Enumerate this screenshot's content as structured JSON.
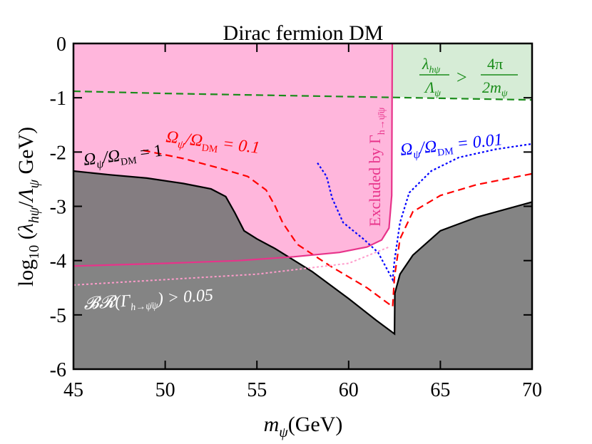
{
  "chart_data": {
    "type": "line",
    "title": "Dirac fermion DM",
    "xlabel": "m_ψ(GeV)",
    "ylabel": "log₁₀(λ_hψ/Λ_ψ GeV)",
    "xlim": [
      45,
      70
    ],
    "ylim": [
      -6,
      0
    ],
    "xticks": [
      45,
      50,
      55,
      60,
      65,
      70
    ],
    "yticks": [
      0,
      -1,
      -2,
      -3,
      -4,
      -5,
      -6
    ],
    "colors": {
      "relic_region": "#777777",
      "relic_line": "#000000",
      "br_region": "#ff99cc",
      "br_line": "#e8338a",
      "perturbative_region": "#9fd39f",
      "perturbative_line": "#1a8c1a",
      "omega01_line": "#ff0000",
      "omega001_line": "#0000ff"
    },
    "series": [
      {
        "name": "Ω_ψ/Ω_DM = 1",
        "color": "#000000",
        "style": "solid",
        "points": [
          [
            45,
            -2.35
          ],
          [
            47,
            -2.42
          ],
          [
            49,
            -2.48
          ],
          [
            51,
            -2.58
          ],
          [
            52.5,
            -2.68
          ],
          [
            53.3,
            -2.82
          ],
          [
            53.8,
            -3.12
          ],
          [
            54.3,
            -3.45
          ],
          [
            55,
            -3.6
          ],
          [
            56,
            -3.78
          ],
          [
            58,
            -4.2
          ],
          [
            60,
            -4.7
          ],
          [
            61.5,
            -5.1
          ],
          [
            62.5,
            -5.35
          ],
          [
            62.52,
            -4.6
          ],
          [
            62.8,
            -4.25
          ],
          [
            63.5,
            -3.9
          ],
          [
            65,
            -3.45
          ],
          [
            67,
            -3.2
          ],
          [
            70,
            -2.92
          ]
        ]
      },
      {
        "name": "Ω_ψ/Ω_DM = 0.1",
        "color": "#ff0000",
        "style": "dashed",
        "points": [
          [
            48.8,
            -1.97
          ],
          [
            51,
            -2.12
          ],
          [
            53,
            -2.3
          ],
          [
            54.5,
            -2.45
          ],
          [
            55.5,
            -2.7
          ],
          [
            56,
            -3.0
          ],
          [
            56.4,
            -3.3
          ],
          [
            57.2,
            -3.7
          ],
          [
            59,
            -4.1
          ],
          [
            61,
            -4.5
          ],
          [
            62.4,
            -4.85
          ],
          [
            62.5,
            -4.3
          ],
          [
            62.8,
            -3.6
          ],
          [
            63.5,
            -3.1
          ],
          [
            65,
            -2.8
          ],
          [
            67,
            -2.6
          ],
          [
            70,
            -2.4
          ]
        ]
      },
      {
        "name": "Ω_ψ/Ω_DM = 0.01",
        "color": "#0000ff",
        "style": "dotted",
        "points": [
          [
            58.3,
            -2.2
          ],
          [
            58.8,
            -2.45
          ],
          [
            59.1,
            -2.85
          ],
          [
            59.7,
            -3.3
          ],
          [
            60.8,
            -3.6
          ],
          [
            61.6,
            -3.85
          ],
          [
            62.4,
            -4.35
          ],
          [
            62.5,
            -4.0
          ],
          [
            62.8,
            -3.3
          ],
          [
            63.3,
            -2.75
          ],
          [
            64.5,
            -2.35
          ],
          [
            66,
            -2.1
          ],
          [
            68,
            -1.95
          ],
          [
            70,
            -1.85
          ]
        ]
      },
      {
        "name": "BR(h→ψψ̄) = 0.05",
        "color": "#e8338a",
        "style": "solid",
        "points": [
          [
            45,
            -4.1
          ],
          [
            50,
            -4.05
          ],
          [
            54,
            -4.0
          ],
          [
            57,
            -3.93
          ],
          [
            59.5,
            -3.85
          ],
          [
            61,
            -3.75
          ],
          [
            61.8,
            -3.62
          ],
          [
            62.2,
            -3.4
          ],
          [
            62.35,
            -2.8
          ],
          [
            62.38,
            0
          ]
        ]
      },
      {
        "name": "λ_hψ/Λ_ψ = 4π/(2m_ψ)",
        "color": "#1a8c1a",
        "style": "dashed",
        "points": [
          [
            45,
            -0.88
          ],
          [
            50,
            -0.92
          ],
          [
            55,
            -0.95
          ],
          [
            60,
            -0.98
          ],
          [
            65,
            -1.01
          ],
          [
            70,
            -1.04
          ]
        ]
      }
    ],
    "regions": [
      {
        "name": "Overproduced relic (grey)",
        "boundary": "Ω_ψ/Ω_DM = 1",
        "side": "below"
      },
      {
        "name": "Excluded by Γ_{h→ψ̄ψ} (pink)",
        "boundary": "BR(h→ψψ̄) = 0.05",
        "side": "above-left"
      },
      {
        "name": "Non-perturbative (green)",
        "boundary": "λ_hψ/Λ_ψ = 4π/(2m_ψ)",
        "side": "above"
      }
    ],
    "annotations": {
      "relic_label": "Ω_ψ/Ω_DM = 1",
      "omega01_label": "Ω_ψ/Ω_DM = 0.1",
      "omega001_label": "Ω_ψ/Ω_DM = 0.01",
      "br_label": "BR(Γ_{h→ψ̄ψ}) > 0.05",
      "excluded_label": "Excluded by Γ_{h→ψ̄ψ}",
      "pert_label": "λ_hψ/Λ_ψ > 4π/2m_ψ"
    }
  }
}
